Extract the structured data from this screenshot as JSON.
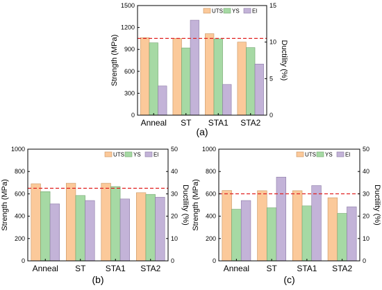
{
  "colors": {
    "UTS": {
      "fill": "#fbc99a",
      "stroke": "#c9935e"
    },
    "YS": {
      "fill": "#a6d9a4",
      "stroke": "#6fa36c"
    },
    "El": {
      "fill": "#c3b3d8",
      "stroke": "#8b7aa6"
    },
    "reference_line": "#e02020"
  },
  "chart_data": [
    {
      "type": "bar",
      "panel_label": "(a)",
      "categories": [
        "Anneal",
        "ST",
        "STA1",
        "STA2"
      ],
      "ylabel": "Strength (MPa)",
      "y2label": "Ductility (%)",
      "ylim": [
        0,
        1500
      ],
      "y2lim": [
        0,
        15
      ],
      "yticks": [
        0,
        300,
        600,
        900,
        1200,
        1500
      ],
      "y2ticks": [
        0,
        5,
        10,
        15
      ],
      "reference_line": {
        "axis": "y",
        "value": 1050,
        "style": "dashed"
      },
      "legend": {
        "position": "top-right",
        "entries": [
          "UTS",
          "YS",
          "El"
        ]
      },
      "series": [
        {
          "name": "UTS",
          "axis": "y",
          "values": [
            1060,
            1050,
            1115,
            1000
          ]
        },
        {
          "name": "YS",
          "axis": "y",
          "values": [
            990,
            920,
            1045,
            925
          ]
        },
        {
          "name": "El",
          "axis": "y2",
          "values": [
            4.0,
            13.0,
            4.2,
            7.0
          ]
        }
      ]
    },
    {
      "type": "bar",
      "panel_label": "(b)",
      "categories": [
        "Anneal",
        "ST",
        "STA1",
        "STA2"
      ],
      "ylabel": "Strength (MPa)",
      "y2label": "Ductility (%)",
      "ylim": [
        0,
        1000
      ],
      "y2lim": [
        0,
        50
      ],
      "yticks": [
        0,
        200,
        400,
        600,
        800,
        1000
      ],
      "y2ticks": [
        0,
        10,
        20,
        30,
        40,
        50
      ],
      "reference_line": {
        "axis": "y",
        "value": 650,
        "style": "dashed"
      },
      "legend": {
        "position": "top-right",
        "entries": [
          "UTS",
          "YS",
          "El"
        ]
      },
      "series": [
        {
          "name": "UTS",
          "axis": "y",
          "values": [
            690,
            695,
            695,
            610
          ]
        },
        {
          "name": "YS",
          "axis": "y",
          "values": [
            620,
            585,
            665,
            595
          ]
        },
        {
          "name": "El",
          "axis": "y2",
          "values": [
            25.5,
            27.0,
            27.7,
            28.5
          ]
        }
      ]
    },
    {
      "type": "bar",
      "panel_label": "(c)",
      "categories": [
        "Anneal",
        "ST",
        "STA1",
        "STA2"
      ],
      "ylabel": "Strength (MPa)",
      "y2label": "Ductility (%)",
      "ylim": [
        0,
        1000
      ],
      "y2lim": [
        0,
        50
      ],
      "yticks": [
        0,
        200,
        400,
        600,
        800,
        1000
      ],
      "y2ticks": [
        0,
        10,
        20,
        30,
        40,
        50
      ],
      "reference_line": {
        "axis": "y",
        "value": 600,
        "style": "dashed"
      },
      "legend": {
        "position": "top-right",
        "entries": [
          "UTS",
          "YS",
          "El"
        ]
      },
      "series": [
        {
          "name": "UTS",
          "axis": "y",
          "values": [
            630,
            628,
            628,
            565
          ]
        },
        {
          "name": "YS",
          "axis": "y",
          "values": [
            462,
            475,
            492,
            425
          ]
        },
        {
          "name": "El",
          "axis": "y2",
          "values": [
            27.0,
            37.5,
            33.7,
            24.2
          ]
        }
      ]
    }
  ]
}
